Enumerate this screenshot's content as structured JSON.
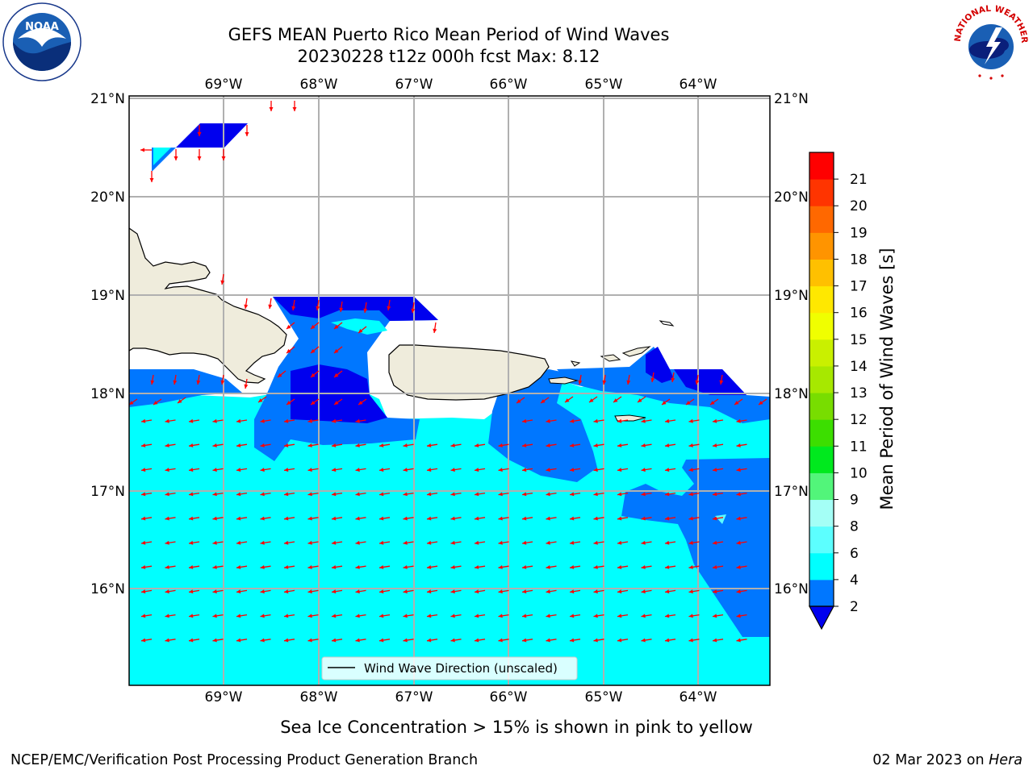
{
  "title": {
    "line1": "GEFS MEAN Puerto Rico Mean Period of Wind Waves",
    "line2": "20230228 t12z 000h fcst   Max: 8.12"
  },
  "map": {
    "lon_ticks": [
      "69°W",
      "68°W",
      "67°W",
      "66°W",
      "65°W",
      "64°W"
    ],
    "lat_ticks": [
      "21°N",
      "20°N",
      "19°N",
      "18°N",
      "17°N",
      "16°N"
    ],
    "legend_label": "Wind Wave Direction (unscaled)",
    "colors": {
      "land": "#efecdc",
      "land_edge": "#000000",
      "band_2_4": "#0077ff",
      "band_below_2": "#0000ee",
      "band_4_6": "#00ffff",
      "band_6_8": "#5cffff",
      "arrow": "#ff0000",
      "grid": "#b0b0b0"
    }
  },
  "colorbar": {
    "title": "Mean Period of Wind Waves [s]",
    "ticks": [
      "2",
      "4",
      "6",
      "8",
      "9",
      "10",
      "11",
      "12",
      "13",
      "14",
      "15",
      "16",
      "17",
      "18",
      "19",
      "20",
      "21"
    ],
    "colors": [
      "#0077ff",
      "#00ffff",
      "#5cffff",
      "#a4fff6",
      "#52f57a",
      "#00e91e",
      "#3cde00",
      "#78dd00",
      "#a7e800",
      "#c9f000",
      "#f0ff00",
      "#ffe800",
      "#ffc000",
      "#ff9400",
      "#ff6800",
      "#ff3400",
      "#ff0000"
    ],
    "extend_color": "#0000ee"
  },
  "captions": {
    "sea_ice": "Sea Ice Concentration > 15% is shown in pink to yellow",
    "footer_left": "NCEP/EMC/Verification Post Processing Product Generation Branch",
    "footer_date": "02 Mar 2023 on ",
    "footer_host": "Hera"
  },
  "logos": {
    "noaa_text": "NOAA",
    "nws_text": "NATIONAL WEATHER SERVICE"
  }
}
